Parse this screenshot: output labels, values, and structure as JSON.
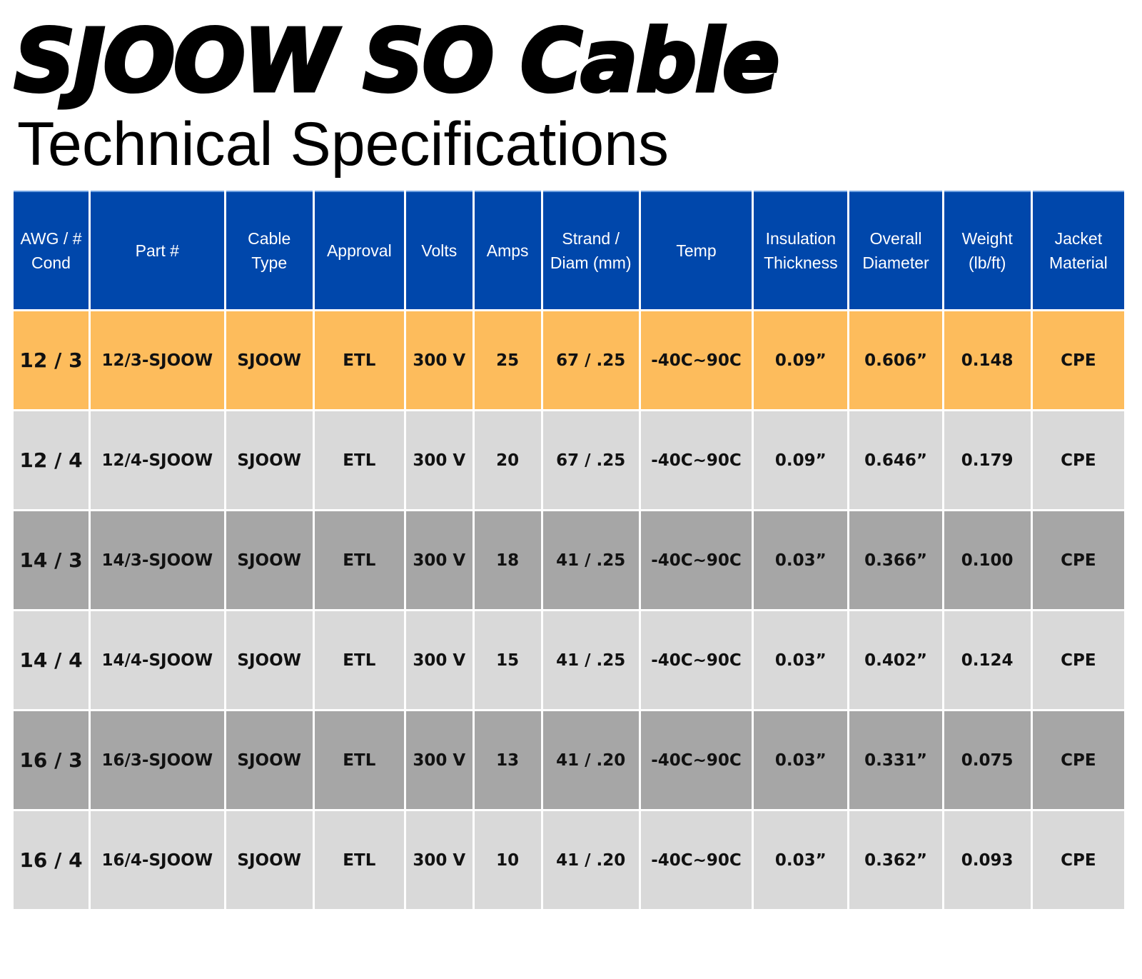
{
  "title": "SJOOW SO Cable",
  "subtitle": "Technical Specifications",
  "table": {
    "headers": [
      "AWG / # Cond",
      "Part #",
      "Cable Type",
      "Approval",
      "Volts",
      "Amps",
      "Strand / Diam (mm)",
      "Temp",
      "Insulation Thickness",
      "Overall Diameter",
      "Weight (lb/ft)",
      "Jacket Material"
    ],
    "rows": [
      [
        "12 / 3",
        "12/3-SJOOW",
        "SJOOW",
        "ETL",
        "300 V",
        "25",
        "67 / .25",
        "-40C~90C",
        "0.09”",
        "0.606”",
        "0.148",
        "CPE"
      ],
      [
        "12 / 4",
        "12/4-SJOOW",
        "SJOOW",
        "ETL",
        "300 V",
        "20",
        "67 / .25",
        "-40C~90C",
        "0.09”",
        "0.646”",
        "0.179",
        "CPE"
      ],
      [
        "14 / 3",
        "14/3-SJOOW",
        "SJOOW",
        "ETL",
        "300 V",
        "18",
        "41 / .25",
        "-40C~90C",
        "0.03”",
        "0.366”",
        "0.100",
        "CPE"
      ],
      [
        "14 / 4",
        "14/4-SJOOW",
        "SJOOW",
        "ETL",
        "300 V",
        "15",
        "41 / .25",
        "-40C~90C",
        "0.03”",
        "0.402”",
        "0.124",
        "CPE"
      ],
      [
        "16 / 3",
        "16/3-SJOOW",
        "SJOOW",
        "ETL",
        "300 V",
        "13",
        "41 / .20",
        "-40C~90C",
        "0.03”",
        "0.331”",
        "0.075",
        "CPE"
      ],
      [
        "16 / 4",
        "16/4-SJOOW",
        "SJOOW",
        "ETL",
        "300 V",
        "10",
        "41 / .20",
        "-40C~90C",
        "0.03”",
        "0.362”",
        "0.093",
        "CPE"
      ]
    ]
  },
  "colors": {
    "header_blue": "#0047ab",
    "highlight_orange": "#fdbc5c",
    "row_light_gray": "#d9d9d9",
    "row_dark_gray": "#a6a6a6"
  }
}
